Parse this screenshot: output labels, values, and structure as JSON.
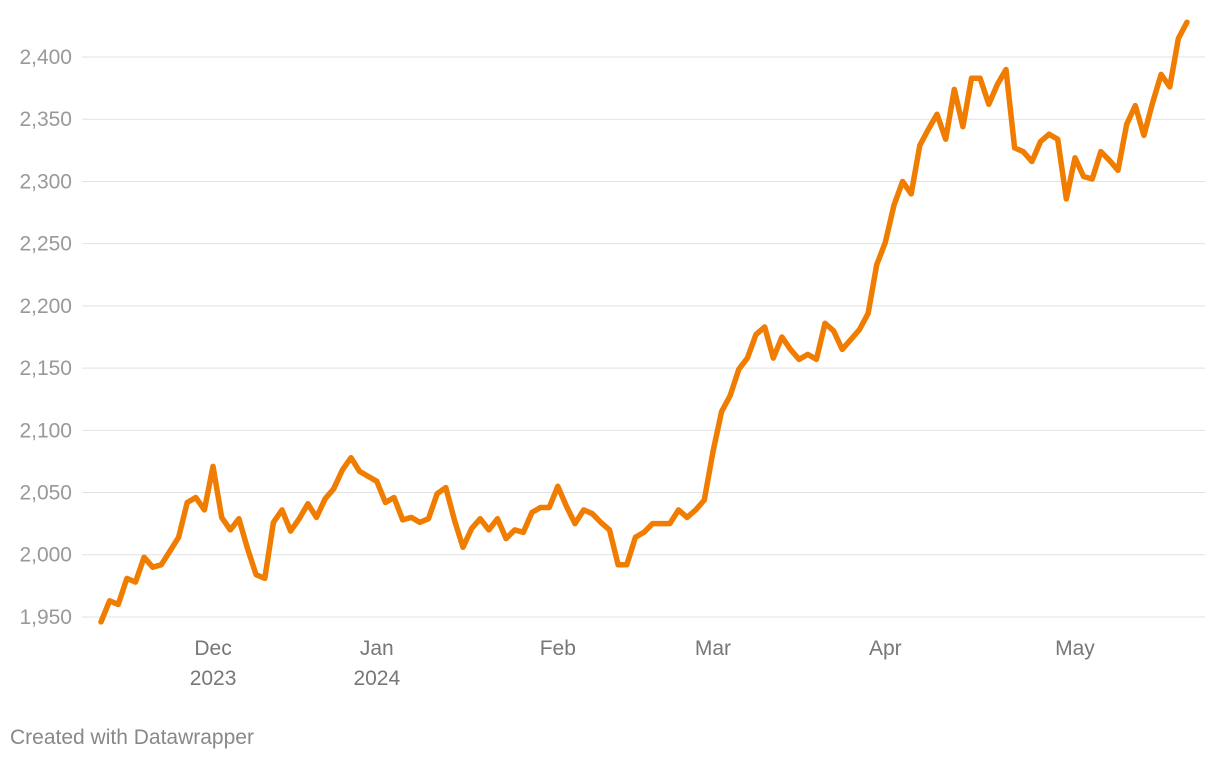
{
  "chart_data": {
    "type": "line",
    "credit": "Created with Datawrapper",
    "color": "#f07c00",
    "grid": true,
    "categories": [
      null,
      null,
      null,
      null,
      null,
      null,
      null,
      null,
      null,
      null,
      null,
      null,
      null,
      "Dec 2023",
      null,
      null,
      null,
      null,
      null,
      null,
      null,
      null,
      null,
      null,
      null,
      null,
      null,
      null,
      null,
      null,
      null,
      null,
      "Jan 2024",
      null,
      null,
      null,
      null,
      null,
      null,
      null,
      null,
      null,
      null,
      null,
      null,
      null,
      null,
      null,
      null,
      null,
      null,
      null,
      null,
      "Feb",
      null,
      null,
      null,
      null,
      null,
      null,
      null,
      null,
      null,
      null,
      null,
      null,
      null,
      null,
      null,
      null,
      null,
      "Mar",
      null,
      null,
      null,
      null,
      null,
      null,
      null,
      null,
      null,
      null,
      null,
      null,
      null,
      null,
      null,
      null,
      null,
      null,
      null,
      "Apr",
      null,
      null,
      null,
      null,
      null,
      null,
      null,
      null,
      null,
      null,
      null,
      null,
      null,
      null,
      null,
      null,
      null,
      null,
      null,
      null,
      null,
      "May",
      null,
      null,
      null,
      null,
      null,
      null,
      null,
      null,
      null,
      null,
      null,
      null,
      null
    ],
    "values": [
      1946,
      1963,
      1960,
      1981,
      1978,
      1998,
      1990,
      1992,
      2003,
      2014,
      2042,
      2046,
      2036,
      2071,
      2030,
      2020,
      2029,
      2005,
      1984,
      1981,
      2026,
      2036,
      2019,
      2029,
      2041,
      2030,
      2045,
      2053,
      2068,
      2078,
      2067,
      2063,
      2059,
      2042,
      2046,
      2028,
      2030,
      2026,
      2029,
      2049,
      2054,
      2028,
      2006,
      2021,
      2029,
      2020,
      2029,
      2013,
      2020,
      2018,
      2034,
      2038,
      2038,
      2055,
      2039,
      2025,
      2036,
      2033,
      2026,
      2020,
      1992,
      1992,
      2014,
      2018,
      2025,
      2025,
      2025,
      2036,
      2030,
      2036,
      2044,
      2083,
      2115,
      2128,
      2149,
      2158,
      2177,
      2183,
      2158,
      2175,
      2165,
      2157,
      2161,
      2157,
      2186,
      2180,
      2165,
      2173,
      2181,
      2194,
      2233,
      2251,
      2281,
      2300,
      2290,
      2329,
      2342,
      2354,
      2334,
      2374,
      2344,
      2383,
      2383,
      2362,
      2378,
      2390,
      2327,
      2324,
      2316,
      2332,
      2338,
      2334,
      2286,
      2319,
      2304,
      2302,
      2324,
      2317,
      2309,
      2346,
      2361,
      2337,
      2363,
      2386,
      2376,
      2415,
      2428
    ],
    "ylim": [
      1940,
      2430
    ],
    "yticks": [
      {
        "value": 1950,
        "label": "1,950"
      },
      {
        "value": 2000,
        "label": "2,000"
      },
      {
        "value": 2050,
        "label": "2,050"
      },
      {
        "value": 2100,
        "label": "2,100"
      },
      {
        "value": 2150,
        "label": "2,150"
      },
      {
        "value": 2200,
        "label": "2,200"
      },
      {
        "value": 2250,
        "label": "2,250"
      },
      {
        "value": 2300,
        "label": "2,300"
      },
      {
        "value": 2350,
        "label": "2,350"
      },
      {
        "value": 2400,
        "label": "2,400"
      }
    ]
  }
}
